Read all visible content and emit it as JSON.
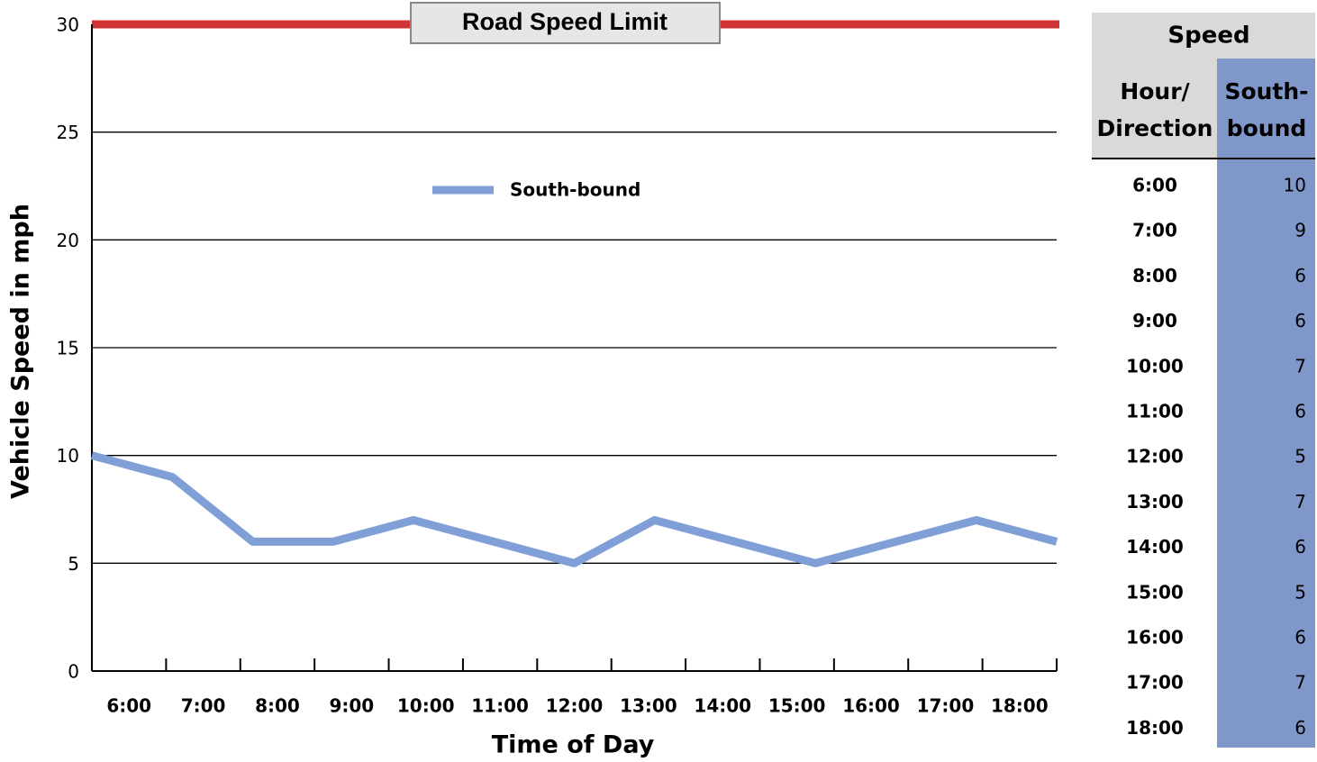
{
  "chart_data": {
    "type": "line",
    "y_label": "Vehicle Speed in mph",
    "x_label": "Time of Day",
    "categories": [
      "6:00",
      "7:00",
      "8:00",
      "9:00",
      "10:00",
      "11:00",
      "12:00",
      "13:00",
      "14:00",
      "15:00",
      "16:00",
      "17:00",
      "18:00"
    ],
    "series": [
      {
        "name": "South-bound",
        "color": "#7f9fd6",
        "values": [
          10,
          9,
          6,
          6,
          7,
          6,
          5,
          7,
          6,
          5,
          6,
          7,
          6
        ]
      }
    ],
    "ylim": [
      0,
      30
    ],
    "yticks": [
      0,
      5,
      10,
      15,
      20,
      25,
      30
    ],
    "grid": true,
    "reference_line": {
      "value": 30,
      "label": "Road Speed Limit",
      "color": "#d03434"
    }
  },
  "table": {
    "title": "Speed",
    "columns": [
      "Hour/ Direction",
      "South- bound"
    ]
  }
}
